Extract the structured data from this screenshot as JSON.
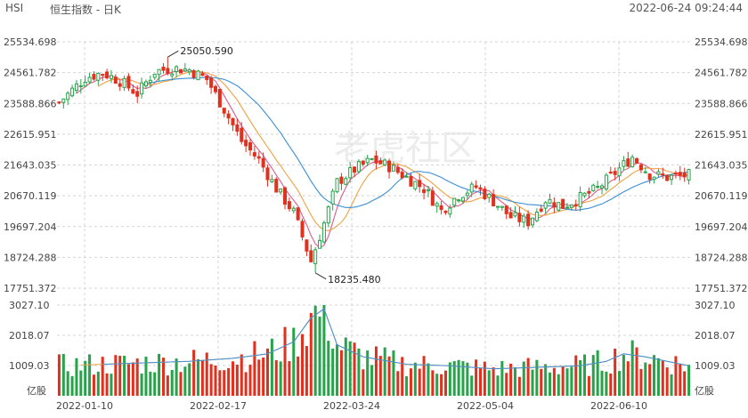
{
  "header": {
    "symbol": "HSI",
    "title": "恒生指数 - 日K",
    "datetime": "2022-06-24 09:24:44"
  },
  "watermark": "老虎社区",
  "colors": {
    "up": "#27a34a",
    "down": "#e0301e",
    "ma5": "#e05a8a",
    "ma10": "#f0a040",
    "ma20": "#3a8fd8",
    "grid": "#d4d4d4",
    "text": "#444444"
  },
  "chart_data": {
    "type": "candlestick",
    "price_axis": {
      "ticks": [
        "25534.698",
        "24561.782",
        "23588.866",
        "22615.951",
        "21643.035",
        "20670.119",
        "19697.204",
        "18724.288",
        "17751.372"
      ],
      "min": 17751.372,
      "max": 25534.698
    },
    "volume_axis": {
      "ticks": [
        "3027.10",
        "2018.07",
        "1009.03"
      ],
      "unit": "亿股",
      "max": 3027.1
    },
    "x_ticks": [
      "2022-01-10",
      "2022-02-17",
      "2022-03-24",
      "2022-05-04",
      "2022-06-10"
    ],
    "annotations": [
      {
        "label": "25050.590",
        "value": 25050.59,
        "at": "high"
      },
      {
        "label": "18235.480",
        "value": 18235.48,
        "at": "low"
      }
    ],
    "close_anchors": [
      [
        0,
        23620
      ],
      [
        6,
        24400
      ],
      [
        10,
        24560
      ],
      [
        14,
        24300
      ],
      [
        18,
        23900
      ],
      [
        22,
        24600
      ],
      [
        26,
        24700
      ],
      [
        30,
        24650
      ],
      [
        34,
        24350
      ],
      [
        38,
        23400
      ],
      [
        42,
        22400
      ],
      [
        46,
        21800
      ],
      [
        50,
        20900
      ],
      [
        54,
        20150
      ],
      [
        58,
        18600
      ],
      [
        61,
        19800
      ],
      [
        64,
        21100
      ],
      [
        68,
        21500
      ],
      [
        72,
        21800
      ],
      [
        76,
        21600
      ],
      [
        80,
        21250
      ],
      [
        84,
        20900
      ],
      [
        88,
        20200
      ],
      [
        92,
        20700
      ],
      [
        96,
        20950
      ],
      [
        100,
        20500
      ],
      [
        104,
        20000
      ],
      [
        108,
        19850
      ],
      [
        112,
        20550
      ],
      [
        116,
        20350
      ],
      [
        120,
        20600
      ],
      [
        124,
        20900
      ],
      [
        128,
        21400
      ],
      [
        132,
        21900
      ],
      [
        136,
        21350
      ],
      [
        140,
        21250
      ],
      [
        145,
        21320
      ]
    ],
    "volume_anchors": [
      [
        0,
        1000
      ],
      [
        10,
        1050
      ],
      [
        20,
        1100
      ],
      [
        30,
        1150
      ],
      [
        40,
        1250
      ],
      [
        48,
        1400
      ],
      [
        54,
        1800
      ],
      [
        58,
        2600
      ],
      [
        61,
        2900
      ],
      [
        64,
        1700
      ],
      [
        70,
        1300
      ],
      [
        80,
        1050
      ],
      [
        90,
        1000
      ],
      [
        100,
        900
      ],
      [
        110,
        950
      ],
      [
        120,
        1000
      ],
      [
        126,
        1150
      ],
      [
        130,
        1400
      ],
      [
        135,
        1300
      ],
      [
        140,
        1150
      ],
      [
        145,
        1000
      ]
    ],
    "candle_count": 146,
    "moving_averages": [
      {
        "name": "MA5",
        "period": 5
      },
      {
        "name": "MA10",
        "period": 10
      },
      {
        "name": "MA20",
        "period": 20
      }
    ]
  }
}
